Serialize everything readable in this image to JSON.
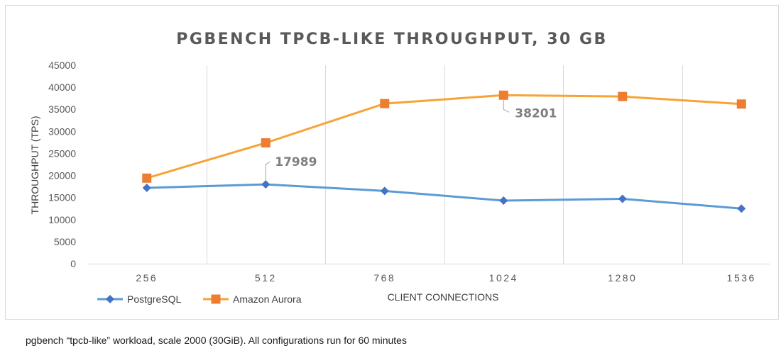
{
  "chart_data": {
    "type": "line",
    "title": "PGBENCH TPCB-LIKE THROUGHPUT, 30 GB",
    "xlabel": "CLIENT CONNECTIONS",
    "ylabel": "THROUGHPUT (TPS)",
    "categories": [
      "256",
      "512",
      "768",
      "1024",
      "1280",
      "1536"
    ],
    "y_ticks": [
      "0",
      "5000",
      "10000",
      "15000",
      "20000",
      "25000",
      "30000",
      "35000",
      "40000",
      "45000"
    ],
    "ylim": [
      0,
      45000
    ],
    "grid": "vertical",
    "legend_position": "bottom-left",
    "series": [
      {
        "name": "PostgreSQL",
        "color": "#4472c4",
        "line_color": "#5b9bd5",
        "marker": "diamond",
        "values": [
          17200,
          17989,
          16500,
          14300,
          14700,
          12500
        ]
      },
      {
        "name": "Amazon Aurora",
        "color": "#ed7d31",
        "line_color": "#f7a335",
        "marker": "square",
        "values": [
          19400,
          27400,
          36300,
          38201,
          37900,
          36200
        ]
      }
    ],
    "annotations": [
      {
        "series": 0,
        "index": 1,
        "text": "17989"
      },
      {
        "series": 1,
        "index": 3,
        "text": "38201"
      }
    ]
  },
  "caption": "pgbench “tpcb-like” workload,  scale 2000  (30GiB).  All configurations run for 60 minutes"
}
